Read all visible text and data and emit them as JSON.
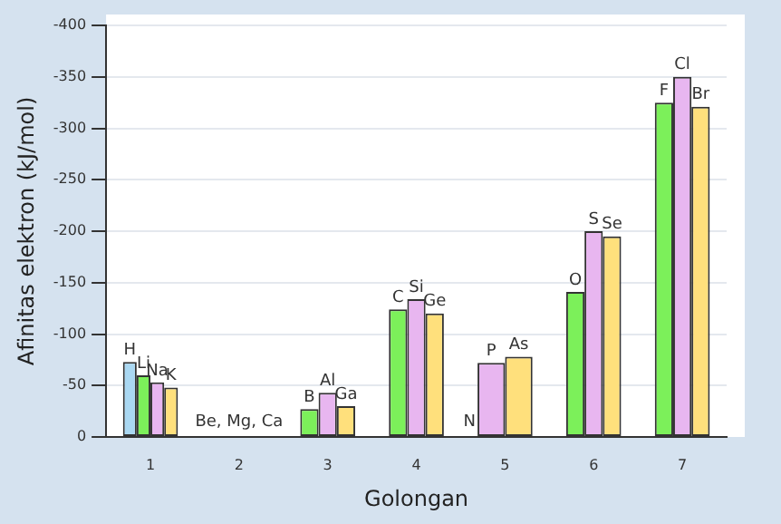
{
  "chart_data": {
    "type": "bar",
    "xlabel": "Golongan",
    "ylabel": "Afinitas elektron (kJ/mol)",
    "categories": [
      "1",
      "2",
      "3",
      "4",
      "5",
      "6",
      "7"
    ],
    "series": [
      {
        "color": "#aad8f2",
        "values": [
          -73,
          null,
          null,
          null,
          null,
          null,
          null
        ],
        "value_labels": [
          "H",
          null,
          null,
          null,
          null,
          null,
          null
        ]
      },
      {
        "color": "#7cf05a",
        "values": [
          -60,
          null,
          -27,
          -124,
          null,
          -141,
          -325
        ],
        "value_labels": [
          "Li",
          null,
          "B",
          "C",
          null,
          "O",
          "F"
        ]
      },
      {
        "color": "#e8b6f0",
        "values": [
          -53,
          null,
          -43,
          -134,
          -72,
          -200,
          -350
        ],
        "value_labels": [
          "Na",
          null,
          "Al",
          "Si",
          "P",
          "S",
          "Cl"
        ]
      },
      {
        "color": "#ffe07c",
        "values": [
          -48,
          null,
          -30,
          -120,
          -78,
          -195,
          -321
        ],
        "value_labels": [
          "K",
          null,
          "Ga",
          "Ge",
          "As",
          "Se",
          "Br"
        ]
      }
    ],
    "annotations": [
      "Be, Mg, Ca",
      "N"
    ],
    "ylim": [
      0,
      -400
    ],
    "yticks": [
      -400,
      -350,
      -300,
      -250,
      -200,
      -150,
      -100,
      -50,
      0
    ],
    "grid": "y",
    "legend": false
  }
}
